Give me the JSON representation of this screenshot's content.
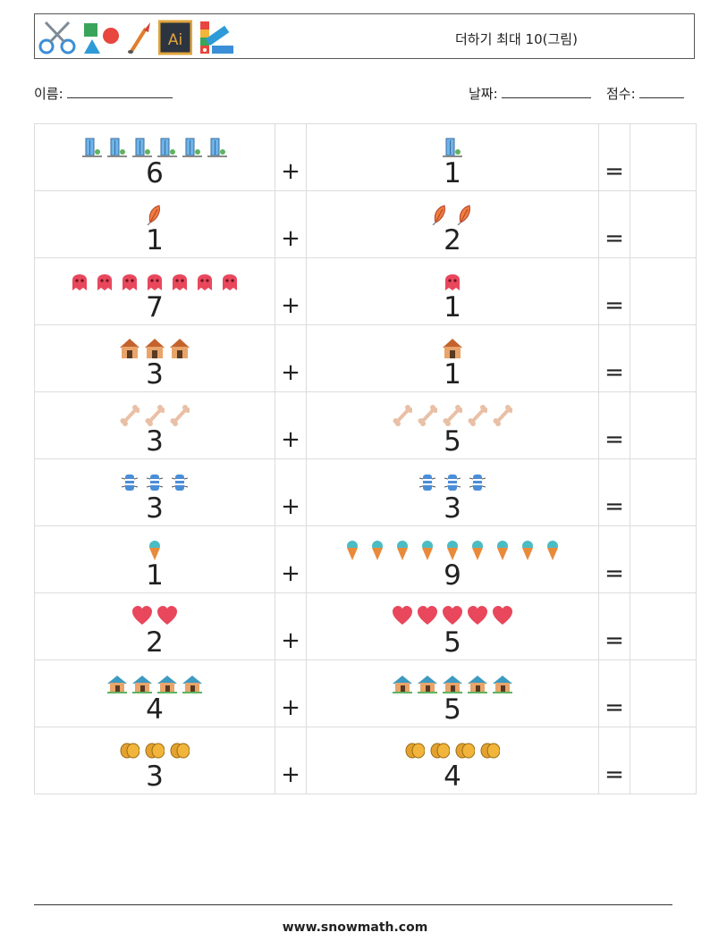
{
  "header": {
    "title": "더하기 최대 10(그림)",
    "logo_icons": [
      "scissors-icon",
      "shapes-icon",
      "brush-icon",
      "illustrator-icon",
      "palette-icon"
    ],
    "logo_ai_text": "Ai"
  },
  "fields": {
    "name_label": "이름:",
    "date_label": "날짜:",
    "score_label": "점수:"
  },
  "operators": {
    "plus": "+",
    "equals": "="
  },
  "problems": [
    {
      "a": 6,
      "b": 1,
      "icon": "building-icon"
    },
    {
      "a": 1,
      "b": 2,
      "icon": "feather-icon"
    },
    {
      "a": 7,
      "b": 1,
      "icon": "ghost-icon"
    },
    {
      "a": 3,
      "b": 1,
      "icon": "house-icon"
    },
    {
      "a": 3,
      "b": 5,
      "icon": "bone-icon"
    },
    {
      "a": 3,
      "b": 3,
      "icon": "bug-icon"
    },
    {
      "a": 1,
      "b": 9,
      "icon": "ice-cream-icon"
    },
    {
      "a": 2,
      "b": 5,
      "icon": "heart-icon"
    },
    {
      "a": 4,
      "b": 5,
      "icon": "cabin-icon"
    },
    {
      "a": 3,
      "b": 4,
      "icon": "coins-icon"
    }
  ],
  "footer": {
    "website": "www.snowmath.com"
  }
}
